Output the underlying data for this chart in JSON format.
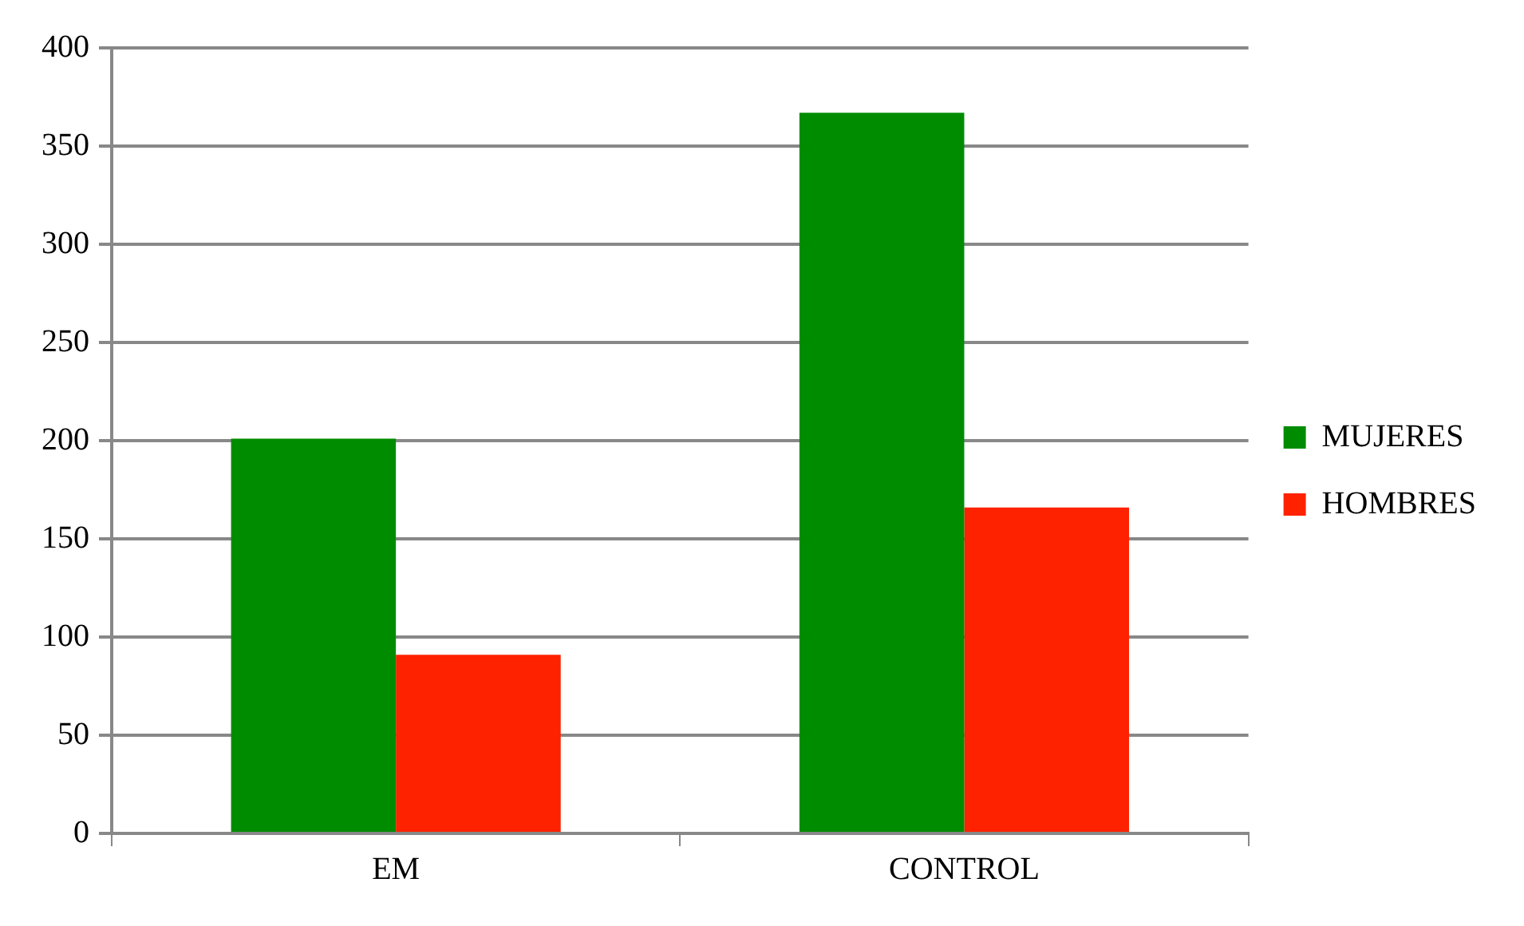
{
  "chart_data": {
    "type": "bar",
    "categories": [
      "EM",
      "CONTROL"
    ],
    "series": [
      {
        "name": "MUJERES",
        "color": "#008c00",
        "values": [
          201,
          367
        ]
      },
      {
        "name": "HOMBRES",
        "color": "#ff2200",
        "values": [
          91,
          166
        ]
      }
    ],
    "ylim": [
      0,
      400
    ],
    "yticks": [
      0,
      50,
      100,
      150,
      200,
      250,
      300,
      350,
      400
    ],
    "grid": "y",
    "legend": "right"
  }
}
